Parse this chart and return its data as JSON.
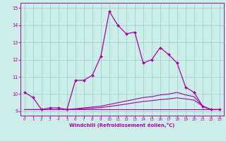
{
  "xlabel": "Windchill (Refroidissement éolien,°C)",
  "bg_color": "#cceee8",
  "line_color": "#aa00aa",
  "grid_color": "#99cccc",
  "x_values": [
    0,
    1,
    2,
    3,
    4,
    5,
    6,
    7,
    8,
    9,
    10,
    11,
    12,
    13,
    14,
    15,
    16,
    17,
    18,
    19,
    20,
    21,
    22,
    23
  ],
  "temp_line": [
    10.1,
    9.8,
    9.1,
    9.2,
    9.2,
    9.1,
    10.8,
    10.8,
    11.1,
    12.2,
    14.8,
    14.0,
    13.5,
    13.6,
    11.8,
    12.0,
    12.7,
    12.3,
    11.8,
    10.4,
    10.1,
    9.3,
    9.1,
    9.1
  ],
  "wc_line1": [
    9.1,
    9.1,
    9.1,
    9.1,
    9.1,
    9.1,
    9.15,
    9.2,
    9.25,
    9.3,
    9.4,
    9.5,
    9.6,
    9.7,
    9.8,
    9.85,
    9.95,
    10.0,
    10.1,
    9.95,
    9.85,
    9.3,
    9.1,
    9.1
  ],
  "wc_line2": [
    9.1,
    9.1,
    9.1,
    9.1,
    9.1,
    9.1,
    9.12,
    9.15,
    9.18,
    9.22,
    9.28,
    9.35,
    9.42,
    9.5,
    9.57,
    9.62,
    9.68,
    9.72,
    9.78,
    9.72,
    9.65,
    9.3,
    9.1,
    9.1
  ],
  "wc_line3": [
    9.1,
    9.1,
    9.1,
    9.1,
    9.1,
    9.1,
    9.1,
    9.1,
    9.1,
    9.1,
    9.1,
    9.1,
    9.1,
    9.1,
    9.1,
    9.1,
    9.1,
    9.1,
    9.1,
    9.1,
    9.1,
    9.1,
    9.1,
    9.1
  ],
  "ylim": [
    8.75,
    15.3
  ],
  "yticks": [
    9,
    10,
    11,
    12,
    13,
    14,
    15
  ],
  "xticks": [
    0,
    1,
    2,
    3,
    4,
    5,
    6,
    7,
    8,
    9,
    10,
    11,
    12,
    13,
    14,
    15,
    16,
    17,
    18,
    19,
    20,
    21,
    22,
    23
  ]
}
